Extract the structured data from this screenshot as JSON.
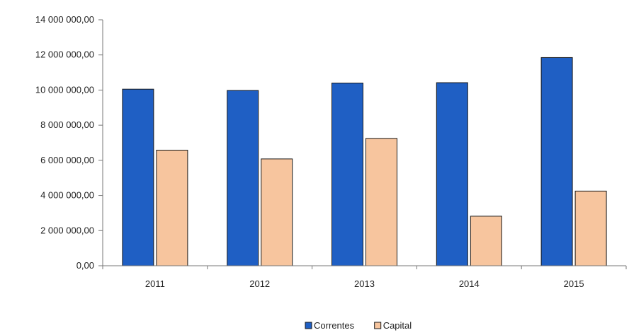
{
  "chart_data": {
    "type": "bar",
    "categories": [
      "2011",
      "2012",
      "2013",
      "2014",
      "2015"
    ],
    "series": [
      {
        "name": "Correntes",
        "color": "#1f5fc4",
        "values": [
          10050000,
          9980000,
          10400000,
          10420000,
          11850000
        ]
      },
      {
        "name": "Capital",
        "color": "#f7c59e",
        "values": [
          6580000,
          6080000,
          7250000,
          2820000,
          4250000
        ]
      }
    ],
    "ylim": [
      0,
      14000000
    ],
    "yticks": [
      0,
      2000000,
      4000000,
      6000000,
      8000000,
      10000000,
      12000000,
      14000000
    ],
    "ytick_labels": [
      "0,00",
      "2 000 000,00",
      "4 000 000,00",
      "6 000 000,00",
      "8 000 000,00",
      "10 000 000,00",
      "12 000 000,00",
      "14 000 000,00"
    ],
    "grid": false,
    "legend_position": "bottom",
    "title": "",
    "xlabel": "",
    "ylabel": ""
  }
}
